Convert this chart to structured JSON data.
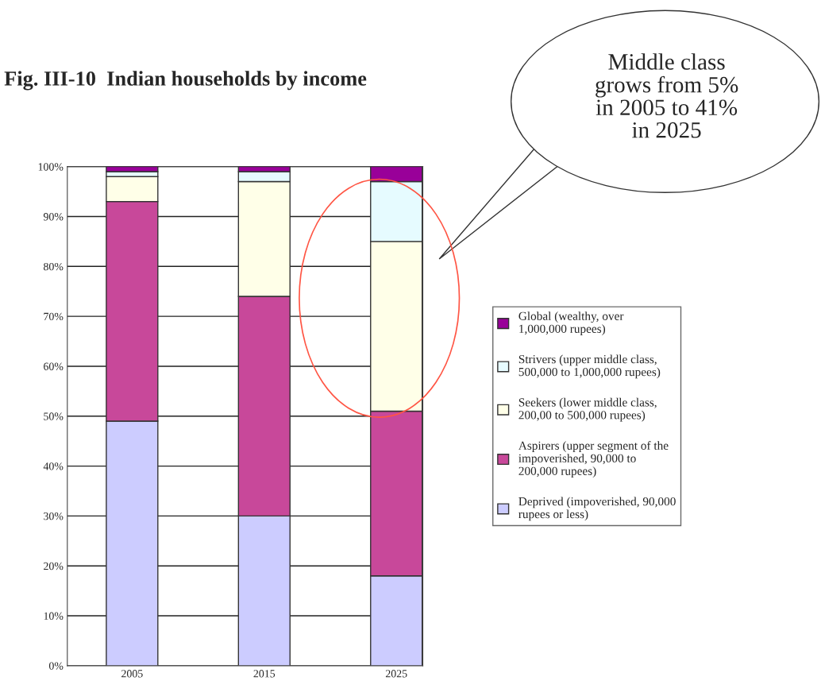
{
  "chart_data": {
    "type": "bar",
    "stacked": true,
    "title": "Fig. III-10  Indian households by income",
    "categories": [
      "2005",
      "2015",
      "2025"
    ],
    "series": [
      {
        "name": "Deprived (impoverished, 90,000 rupees or less)",
        "color": "#ccccff",
        "values": [
          49,
          30,
          18
        ]
      },
      {
        "name": "Aspirers (upper segment of the impoverished, 90,000 to 200,000 rupees)",
        "color": "#c8489a",
        "values": [
          44,
          44,
          33
        ]
      },
      {
        "name": "Seekers (lower middle class, 200,00 to 500,000 rupees)",
        "color": "#ffffe8",
        "values": [
          5,
          23,
          34
        ]
      },
      {
        "name": "Strivers (upper middle class, 500,000 to 1,000,000 rupees)",
        "color": "#e6fbff",
        "values": [
          1,
          2,
          12
        ]
      },
      {
        "name": "Global (wealthy, over 1,000,000 rupees)",
        "color": "#990099",
        "values": [
          1,
          1,
          3
        ]
      }
    ],
    "ylim": [
      0,
      100
    ],
    "yticks": [
      {
        "value": 0,
        "label": "0%"
      },
      {
        "value": 10,
        "label": "10%"
      },
      {
        "value": 20,
        "label": "20%"
      },
      {
        "value": 30,
        "label": "30%"
      },
      {
        "value": 40,
        "label": "40%"
      },
      {
        "value": 50,
        "label": "50%"
      },
      {
        "value": 60,
        "label": "60%"
      },
      {
        "value": 70,
        "label": "70%"
      },
      {
        "value": 80,
        "label": "80%"
      },
      {
        "value": 90,
        "label": "90%"
      },
      {
        "value": 100,
        "label": "100%"
      }
    ],
    "grid": "y",
    "legend": "right",
    "annotations": [
      "Middle class\ngrows from 5%\nin 2005 to 41%\nin 2025"
    ]
  }
}
